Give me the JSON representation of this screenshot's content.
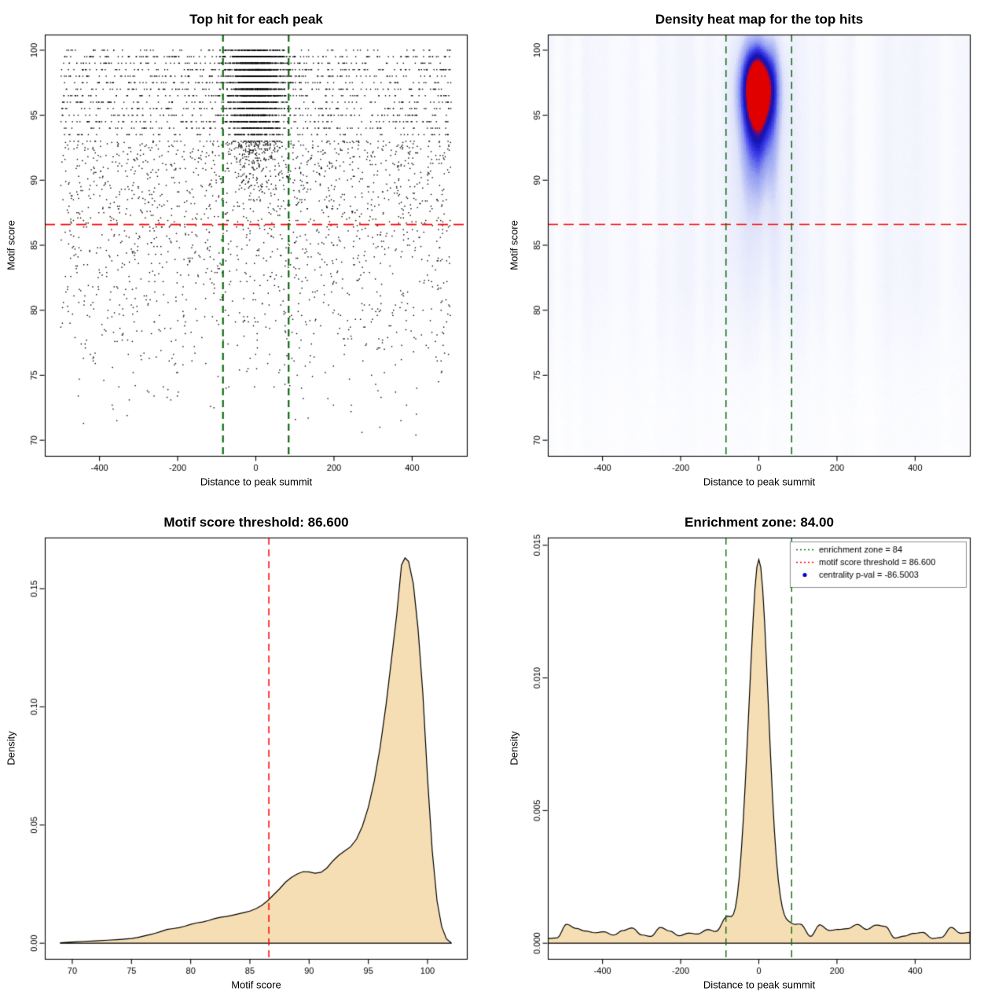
{
  "figure": {
    "background": "#ffffff"
  },
  "chart_data": [
    {
      "type": "scatter",
      "title": "Top hit for each peak",
      "xlabel": "Distance to peak summit",
      "ylabel": "Motif score",
      "xlim": [
        -500,
        500
      ],
      "ylim": [
        70,
        100
      ],
      "xticks": [
        -400,
        -200,
        0,
        200,
        400
      ],
      "yticks": [
        70,
        75,
        80,
        85,
        90,
        95,
        100
      ],
      "point_color": "#000000",
      "lines": [
        {
          "orient": "h",
          "value": 86.6,
          "color": "#ff0000",
          "style": "longdash",
          "width": 1.7
        },
        {
          "orient": "v",
          "value": -84,
          "color": "#0c6b0c",
          "style": "dashed",
          "width": 2.2
        },
        {
          "orient": "v",
          "value": 84,
          "color": "#0c6b0c",
          "style": "dashed",
          "width": 2.2
        }
      ],
      "points": {
        "seed": 42,
        "n_background": 3200,
        "n_cluster": 2600,
        "cluster_x_center": 0,
        "cluster_x_sd": 36,
        "cluster_score_sd": 3.3,
        "score_max": 100,
        "band_quantum": 0.5
      }
    },
    {
      "type": "heatmap",
      "title": "Density heat map for the top hits",
      "xlabel": "Distance to peak summit",
      "ylabel": "Motif score",
      "xlim": [
        -500,
        500
      ],
      "ylim": [
        70,
        100
      ],
      "xticks": [
        -400,
        -200,
        0,
        200,
        400
      ],
      "yticks": [
        70,
        75,
        80,
        85,
        90,
        95,
        100
      ],
      "lines": [
        {
          "orient": "h",
          "value": 86.6,
          "color": "#ff0000",
          "style": "longdash",
          "width": 1.4
        },
        {
          "orient": "v",
          "value": -84,
          "color": "#0c6b0c",
          "style": "dashed",
          "width": 1.5
        },
        {
          "orient": "v",
          "value": 84,
          "color": "#0c6b0c",
          "style": "dashed",
          "width": 1.5
        }
      ],
      "blobs": [
        {
          "a": 1.0,
          "x": 0,
          "y": 97.4,
          "sx": 34,
          "sy": 2.4
        },
        {
          "a": 0.45,
          "x": 0,
          "y": 93.5,
          "sx": 32,
          "sy": 3.2
        },
        {
          "a": 0.18,
          "x": 0,
          "y": 89,
          "sx": 55,
          "sy": 6
        }
      ],
      "stripe": {
        "seed": 3,
        "amplitude": 0.13
      },
      "colormap_stops": [
        [
          0,
          "#ffffff"
        ],
        [
          0.08,
          "#f7f8fe"
        ],
        [
          0.3,
          "#dfe3fa"
        ],
        [
          0.55,
          "#8e9af0"
        ],
        [
          0.72,
          "#3a3ae8"
        ],
        [
          0.85,
          "#1212b4"
        ],
        [
          0.93,
          "#38109e"
        ],
        [
          1,
          "#e00000"
        ]
      ]
    },
    {
      "type": "density",
      "title": "Motif score threshold: 86.600",
      "xlabel": "Motif score",
      "ylabel": "Density",
      "xlim": [
        69,
        102
      ],
      "ylim": [
        0,
        0.165
      ],
      "xticks": [
        70,
        75,
        80,
        85,
        90,
        95,
        100
      ],
      "yticks": [
        0,
        0.05,
        0.1,
        0.15
      ],
      "ytick_labels": [
        "0.00",
        "0.05",
        "0.10",
        "0.15"
      ],
      "fill": "#f5deb3",
      "stroke": "#000000",
      "lines": [
        {
          "orient": "v",
          "value": 86.6,
          "color": "#ff0000",
          "style": "dashed",
          "width": 1.5
        }
      ],
      "curve": {
        "x": [
          69,
          70,
          71,
          72,
          73,
          74,
          75,
          75.5,
          76,
          76.5,
          77,
          77.5,
          78,
          78.5,
          79,
          79.5,
          80,
          80.5,
          81,
          81.5,
          82,
          82.5,
          83,
          83.5,
          84,
          84.5,
          85,
          85.5,
          86,
          86.5,
          87,
          87.5,
          88,
          88.5,
          89,
          89.5,
          90,
          90.5,
          91,
          91.5,
          92,
          92.5,
          93,
          93.5,
          94,
          94.5,
          95,
          95.5,
          96,
          96.5,
          97,
          97.4,
          97.8,
          98.1,
          98.4,
          98.8,
          99.2,
          99.6,
          100,
          100.4,
          100.8,
          101.2,
          101.6,
          102
        ],
        "y": [
          0.0002,
          0.0005,
          0.0008,
          0.001,
          0.0013,
          0.0016,
          0.002,
          0.0024,
          0.003,
          0.0036,
          0.0042,
          0.005,
          0.0058,
          0.0062,
          0.0066,
          0.0072,
          0.008,
          0.0086,
          0.009,
          0.0096,
          0.0104,
          0.011,
          0.0113,
          0.0118,
          0.0124,
          0.013,
          0.0136,
          0.0146,
          0.016,
          0.018,
          0.0205,
          0.023,
          0.0258,
          0.0278,
          0.0293,
          0.0303,
          0.0302,
          0.0296,
          0.03,
          0.0318,
          0.0348,
          0.0372,
          0.039,
          0.0408,
          0.044,
          0.0495,
          0.0575,
          0.0685,
          0.083,
          0.101,
          0.122,
          0.139,
          0.16,
          0.163,
          0.1615,
          0.152,
          0.133,
          0.106,
          0.07,
          0.039,
          0.018,
          0.007,
          0.0018,
          0.0002
        ]
      }
    },
    {
      "type": "density",
      "title": "Enrichment zone: 84.00",
      "xlabel": "Distance to peak summit",
      "ylabel": "Density",
      "xlim": [
        -500,
        500
      ],
      "ylim": [
        0,
        0.0147
      ],
      "xticks": [
        -400,
        -200,
        0,
        200,
        400
      ],
      "yticks": [
        0,
        0.005,
        0.01,
        0.015
      ],
      "ytick_labels": [
        "0.000",
        "0.005",
        "0.010",
        "0.015"
      ],
      "fill": "#f5deb3",
      "stroke": "#000000",
      "lines": [
        {
          "orient": "v",
          "value": -84,
          "color": "#0c6b0c",
          "style": "dashed",
          "width": 1.4
        },
        {
          "orient": "v",
          "value": 84,
          "color": "#0c6b0c",
          "style": "dashed",
          "width": 1.4
        }
      ],
      "curve_gen": {
        "seed": 7,
        "baseline": 0.00045,
        "noise_amp": 0.00028,
        "node_step": 24,
        "peak_height": 0.0134,
        "peak_sd": 24,
        "shoulder_height": 0.0008,
        "shoulder_sd": 55
      },
      "legend": [
        {
          "label": "enrichment zone = 84",
          "color": "#0c6b0c",
          "marker": "dotted-line"
        },
        {
          "label": "motif score threshold = 86.600",
          "color": "#ff0000",
          "marker": "dotted-line"
        },
        {
          "label": "centrality p-val = -86.5003",
          "color": "#0000cc",
          "marker": "point"
        }
      ]
    }
  ]
}
